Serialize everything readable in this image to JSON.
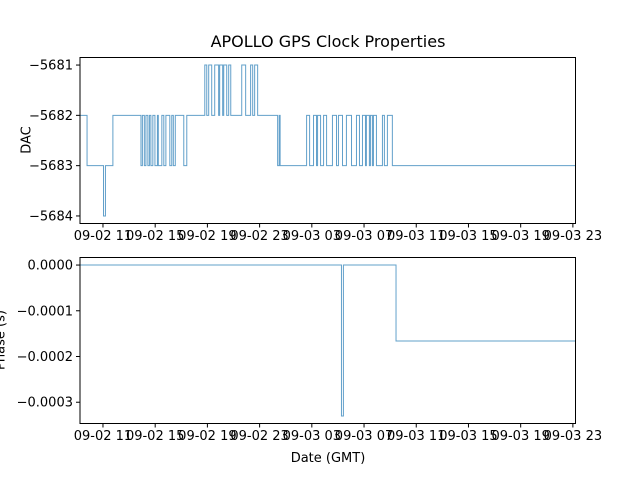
{
  "figure": {
    "title": "APOLLO GPS Clock Properties",
    "background": "#ffffff",
    "text_color": "#000000",
    "spine_color": "#000000"
  },
  "chart_data": [
    {
      "type": "line",
      "title": "APOLLO GPS Clock Properties",
      "ylabel": "DAC",
      "xlabel": "",
      "series_color": "#1f77b4",
      "line_style": "steps-post",
      "grid": false,
      "legend": "none",
      "x_encoding": "hours since 09-02 00:00 GMT",
      "xlim": [
        9.24,
        47.2
      ],
      "ylim": [
        -5684.15,
        -5680.85
      ],
      "yticks": [
        {
          "v": -5681,
          "label": "−5681"
        },
        {
          "v": -5682,
          "label": "−5682"
        },
        {
          "v": -5683,
          "label": "−5683"
        },
        {
          "v": -5684,
          "label": "−5684"
        }
      ],
      "xticks": [
        {
          "t": 11,
          "label": "09-02 11"
        },
        {
          "t": 15,
          "label": "09-02 15"
        },
        {
          "t": 19,
          "label": "09-02 19"
        },
        {
          "t": 23,
          "label": "09-02 23"
        },
        {
          "t": 27,
          "label": "09-03 03"
        },
        {
          "t": 31,
          "label": "09-03 07"
        },
        {
          "t": 35,
          "label": "09-03 11"
        },
        {
          "t": 39,
          "label": "09-03 15"
        },
        {
          "t": 43,
          "label": "09-03 19"
        },
        {
          "t": 47,
          "label": "09-03 23"
        }
      ],
      "points": [
        [
          9.24,
          -5682
        ],
        [
          9.78,
          -5683
        ],
        [
          11.04,
          -5684
        ],
        [
          11.19,
          -5683
        ],
        [
          11.76,
          -5682
        ],
        [
          13.91,
          -5683
        ],
        [
          14.02,
          -5682
        ],
        [
          14.17,
          -5683
        ],
        [
          14.29,
          -5682
        ],
        [
          14.44,
          -5683
        ],
        [
          14.56,
          -5682
        ],
        [
          14.67,
          -5683
        ],
        [
          14.82,
          -5682
        ],
        [
          14.98,
          -5683
        ],
        [
          15.17,
          -5682
        ],
        [
          15.24,
          -5683
        ],
        [
          15.51,
          -5682
        ],
        [
          15.66,
          -5683
        ],
        [
          15.82,
          -5682
        ],
        [
          16.12,
          -5683
        ],
        [
          16.27,
          -5682
        ],
        [
          16.39,
          -5683
        ],
        [
          16.54,
          -5682
        ],
        [
          17.19,
          -5683
        ],
        [
          17.42,
          -5682
        ],
        [
          18.8,
          -5681
        ],
        [
          18.95,
          -5682
        ],
        [
          19.1,
          -5681
        ],
        [
          19.33,
          -5682
        ],
        [
          19.56,
          -5681
        ],
        [
          19.86,
          -5682
        ],
        [
          19.94,
          -5681
        ],
        [
          20.17,
          -5682
        ],
        [
          20.25,
          -5681
        ],
        [
          20.48,
          -5682
        ],
        [
          20.63,
          -5681
        ],
        [
          20.79,
          -5682
        ],
        [
          21.63,
          -5681
        ],
        [
          21.93,
          -5682
        ],
        [
          22.31,
          -5681
        ],
        [
          22.47,
          -5682
        ],
        [
          22.62,
          -5681
        ],
        [
          22.85,
          -5682
        ],
        [
          24.38,
          -5683
        ],
        [
          24.5,
          -5682
        ],
        [
          24.57,
          -5683
        ],
        [
          26.6,
          -5682
        ],
        [
          26.83,
          -5683
        ],
        [
          27.13,
          -5682
        ],
        [
          27.36,
          -5683
        ],
        [
          27.44,
          -5682
        ],
        [
          27.67,
          -5683
        ],
        [
          27.9,
          -5682
        ],
        [
          28.13,
          -5683
        ],
        [
          28.58,
          -5682
        ],
        [
          28.89,
          -5683
        ],
        [
          29.04,
          -5682
        ],
        [
          29.35,
          -5683
        ],
        [
          29.65,
          -5682
        ],
        [
          30.04,
          -5683
        ],
        [
          30.42,
          -5682
        ],
        [
          30.65,
          -5683
        ],
        [
          30.88,
          -5682
        ],
        [
          31.11,
          -5683
        ],
        [
          31.18,
          -5682
        ],
        [
          31.41,
          -5683
        ],
        [
          31.49,
          -5682
        ],
        [
          31.64,
          -5683
        ],
        [
          31.72,
          -5682
        ],
        [
          31.95,
          -5683
        ],
        [
          32.41,
          -5682
        ],
        [
          32.56,
          -5683
        ],
        [
          32.79,
          -5682
        ],
        [
          33.17,
          -5683
        ]
      ]
    },
    {
      "type": "line",
      "ylabel": "Phase (s)",
      "xlabel": "Date (GMT)",
      "series_color": "#1f77b4",
      "line_style": "steps-post",
      "grid": false,
      "legend": "none",
      "x_encoding": "hours since 09-02 00:00 GMT",
      "xlim": [
        9.24,
        47.2
      ],
      "ylim": [
        -0.0003465,
        1.65e-05
      ],
      "yticks": [
        {
          "v": 0,
          "label": "0.0000"
        },
        {
          "v": -0.0001,
          "label": "−0.0001"
        },
        {
          "v": -0.0002,
          "label": "−0.0002"
        },
        {
          "v": -0.0003,
          "label": "−0.0003"
        }
      ],
      "xticks": [
        {
          "t": 11,
          "label": "09-02 11"
        },
        {
          "t": 15,
          "label": "09-02 15"
        },
        {
          "t": 19,
          "label": "09-02 19"
        },
        {
          "t": 23,
          "label": "09-02 23"
        },
        {
          "t": 27,
          "label": "09-03 03"
        },
        {
          "t": 31,
          "label": "09-03 07"
        },
        {
          "t": 35,
          "label": "09-03 11"
        },
        {
          "t": 39,
          "label": "09-03 15"
        },
        {
          "t": 43,
          "label": "09-03 19"
        },
        {
          "t": 47,
          "label": "09-03 23"
        }
      ],
      "points": [
        [
          9.24,
          0.0
        ],
        [
          29.27,
          -0.00033
        ],
        [
          29.42,
          0.0
        ],
        [
          33.45,
          -0.000166
        ]
      ]
    }
  ]
}
